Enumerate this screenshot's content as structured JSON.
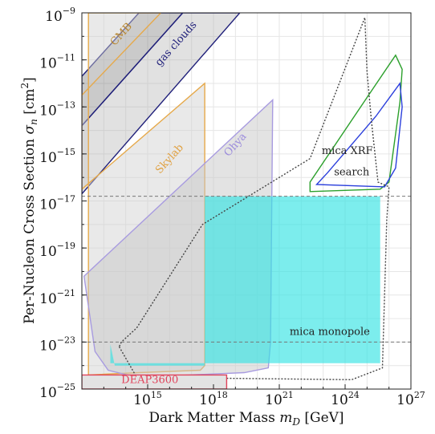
{
  "chart_data": {
    "type": "area",
    "xlabel": "Dark Matter Mass m_D [GeV]",
    "xlabel_parts": {
      "text": "Dark Matter Mass ",
      "sym": "m",
      "sub": "D",
      "unit": " [GeV]"
    },
    "ylabel": "Per-Nucleon Cross Section σ_n [cm²]",
    "ylabel_parts": {
      "text": "Per-Nucleon Cross Section ",
      "sym": "σ",
      "sub": "n",
      "unit": " [cm",
      "sup": "2",
      "close": "]"
    },
    "x_scale": "log",
    "y_scale": "log",
    "xlim": [
      1000000000000.0,
      1e+27
    ],
    "ylim": [
      1e-25,
      1e-09
    ],
    "grid": true,
    "x_ticks": [
      {
        "exp": 15,
        "label": "10",
        "sup": "15"
      },
      {
        "exp": 18,
        "label": "10",
        "sup": "18"
      },
      {
        "exp": 21,
        "label": "10",
        "sup": "21"
      },
      {
        "exp": 24,
        "label": "10",
        "sup": "24"
      },
      {
        "exp": 27,
        "label": "10",
        "sup": "27"
      }
    ],
    "y_ticks": [
      {
        "exp": -9,
        "label": "10",
        "sup": "−9"
      },
      {
        "exp": -11,
        "label": "10",
        "sup": "−11"
      },
      {
        "exp": -13,
        "label": "10",
        "sup": "−13"
      },
      {
        "exp": -15,
        "label": "10",
        "sup": "−15"
      },
      {
        "exp": -17,
        "label": "10",
        "sup": "−17"
      },
      {
        "exp": -19,
        "label": "10",
        "sup": "−19"
      },
      {
        "exp": -21,
        "label": "10",
        "sup": "−21"
      },
      {
        "exp": -23,
        "label": "10",
        "sup": "−23"
      },
      {
        "exp": -25,
        "label": "10",
        "sup": "−25"
      }
    ],
    "regions": [
      {
        "name": "gas clouds",
        "fill": "#a9a9a9",
        "fill_opacity": 0.35,
        "stroke": "#1f1f7a",
        "polygon": [
          [
            12,
            -16.7
          ],
          [
            12,
            -13.8
          ],
          [
            16.6,
            -9
          ],
          [
            19.2,
            -9
          ]
        ]
      },
      {
        "name": "CMB",
        "fill": "#7a7a7a",
        "fill_opacity": 0.4,
        "stroke": "#1f1f7a",
        "polygon": [
          [
            12,
            -11.7
          ],
          [
            14.6,
            -9
          ],
          [
            16.6,
            -9
          ],
          [
            12,
            -13.8
          ]
        ]
      },
      {
        "name": "Skylab",
        "fill": "#cfcfcf",
        "fill_opacity": 0.45,
        "stroke": "#e6a94a",
        "polygon": [
          [
            12.3,
            -24.4
          ],
          [
            14.6,
            -24.3
          ],
          [
            17.4,
            -24.2
          ],
          [
            17.6,
            -24.0
          ],
          [
            17.6,
            -12.0
          ],
          [
            12,
            -16.5
          ],
          [
            12,
            -12.5
          ],
          [
            15.6,
            -9
          ],
          [
            12.3,
            -9
          ]
        ]
      },
      {
        "name": "Ohya",
        "fill": "#c8c8c8",
        "fill_opacity": 0.5,
        "stroke": "#a89be0",
        "polygon": [
          [
            12.6,
            -23.4
          ],
          [
            13.2,
            -24.2
          ],
          [
            14.5,
            -24.5
          ],
          [
            19.4,
            -24.3
          ],
          [
            20.5,
            -24.1
          ],
          [
            20.6,
            -23.0
          ],
          [
            20.7,
            -12.7
          ],
          [
            12.1,
            -20.2
          ]
        ]
      },
      {
        "name": "mica monopole",
        "fill": "#35e3e3",
        "fill_opacity": 0.65,
        "stroke": "none",
        "polygon": [
          [
            13.3,
            -23.1
          ],
          [
            13.5,
            -24.0
          ],
          [
            17.6,
            -24.0
          ],
          [
            17.6,
            -16.8
          ],
          [
            25.6,
            -16.8
          ],
          [
            25.6,
            -23.9
          ],
          [
            13.3,
            -23.9
          ]
        ]
      },
      {
        "name": "mica XRF search",
        "stroke": "#2ca02c",
        "polygon": [
          [
            22.4,
            -16.6
          ],
          [
            22.4,
            -16.2
          ],
          [
            25.0,
            -12.6
          ],
          [
            26.3,
            -10.8
          ],
          [
            26.6,
            -11.4
          ],
          [
            26.5,
            -12.8
          ],
          [
            26.0,
            -16.2
          ],
          [
            25.6,
            -16.5
          ]
        ]
      },
      {
        "name": "mica XRF search (blue)",
        "stroke": "#2b3fdc",
        "polygon": [
          [
            22.7,
            -16.3
          ],
          [
            23.2,
            -15.8
          ],
          [
            25.4,
            -13.4
          ],
          [
            26.5,
            -12.0
          ],
          [
            26.6,
            -13.0
          ],
          [
            26.3,
            -15.6
          ],
          [
            25.8,
            -16.4
          ]
        ]
      },
      {
        "name": "dotted envelope",
        "stroke": "#444444",
        "dash": "2,2",
        "polygon": [
          [
            13.7,
            -23.2
          ],
          [
            14.5,
            -24.5
          ],
          [
            24.3,
            -24.6
          ],
          [
            25.7,
            -24.1
          ],
          [
            25.9,
            -17.8
          ],
          [
            26.0,
            -16.4
          ],
          [
            25.5,
            -16.2
          ],
          [
            25.2,
            -13.6
          ],
          [
            25.0,
            -11.5
          ],
          [
            24.9,
            -9.2
          ],
          [
            22.4,
            -15.2
          ],
          [
            17.5,
            -18.0
          ],
          [
            14.5,
            -22.4
          ],
          [
            13.8,
            -23.0
          ]
        ]
      },
      {
        "name": "DEAP3600",
        "fill": "#e3e3e3",
        "fill_opacity": 1,
        "stroke": "#e0425a",
        "polygon": [
          [
            12,
            -24.4
          ],
          [
            12,
            -25
          ],
          [
            18.6,
            -25
          ],
          [
            18.6,
            -24.4
          ]
        ]
      }
    ],
    "hlines": [
      {
        "y_exp": -16.8,
        "color": "#777777",
        "dash": "4,3"
      },
      {
        "y_exp": -23.0,
        "color": "#777777",
        "dash": "4,3"
      }
    ],
    "annotations": [
      {
        "text": "CMB",
        "x_exp": 13.9,
        "y_exp": -10.0,
        "rotate": -48,
        "color": "#b8862f"
      },
      {
        "text": "gas clouds",
        "x_exp": 16.4,
        "y_exp": -10.4,
        "rotate": -48,
        "color": "#1f1f7a"
      },
      {
        "text": "Skylab",
        "x_exp": 16.1,
        "y_exp": -15.3,
        "rotate": -48,
        "color": "#e0a040"
      },
      {
        "text": "Ohya",
        "x_exp": 19.1,
        "y_exp": -14.7,
        "rotate": -48,
        "color": "#9b8bdc"
      },
      {
        "text": "mica XRF",
        "x_exp": 24.1,
        "y_exp": -15.0,
        "rotate": 0,
        "color": "#222222"
      },
      {
        "text": "search",
        "x_exp": 24.3,
        "y_exp": -15.9,
        "rotate": 0,
        "color": "#222222"
      },
      {
        "text": "mica monopole",
        "x_exp": 23.3,
        "y_exp": -22.7,
        "rotate": 0,
        "color": "#222222"
      },
      {
        "text": "DEAP3600",
        "x_exp": 15.1,
        "y_exp": -24.75,
        "rotate": 0,
        "color": "#e0425a"
      }
    ]
  }
}
